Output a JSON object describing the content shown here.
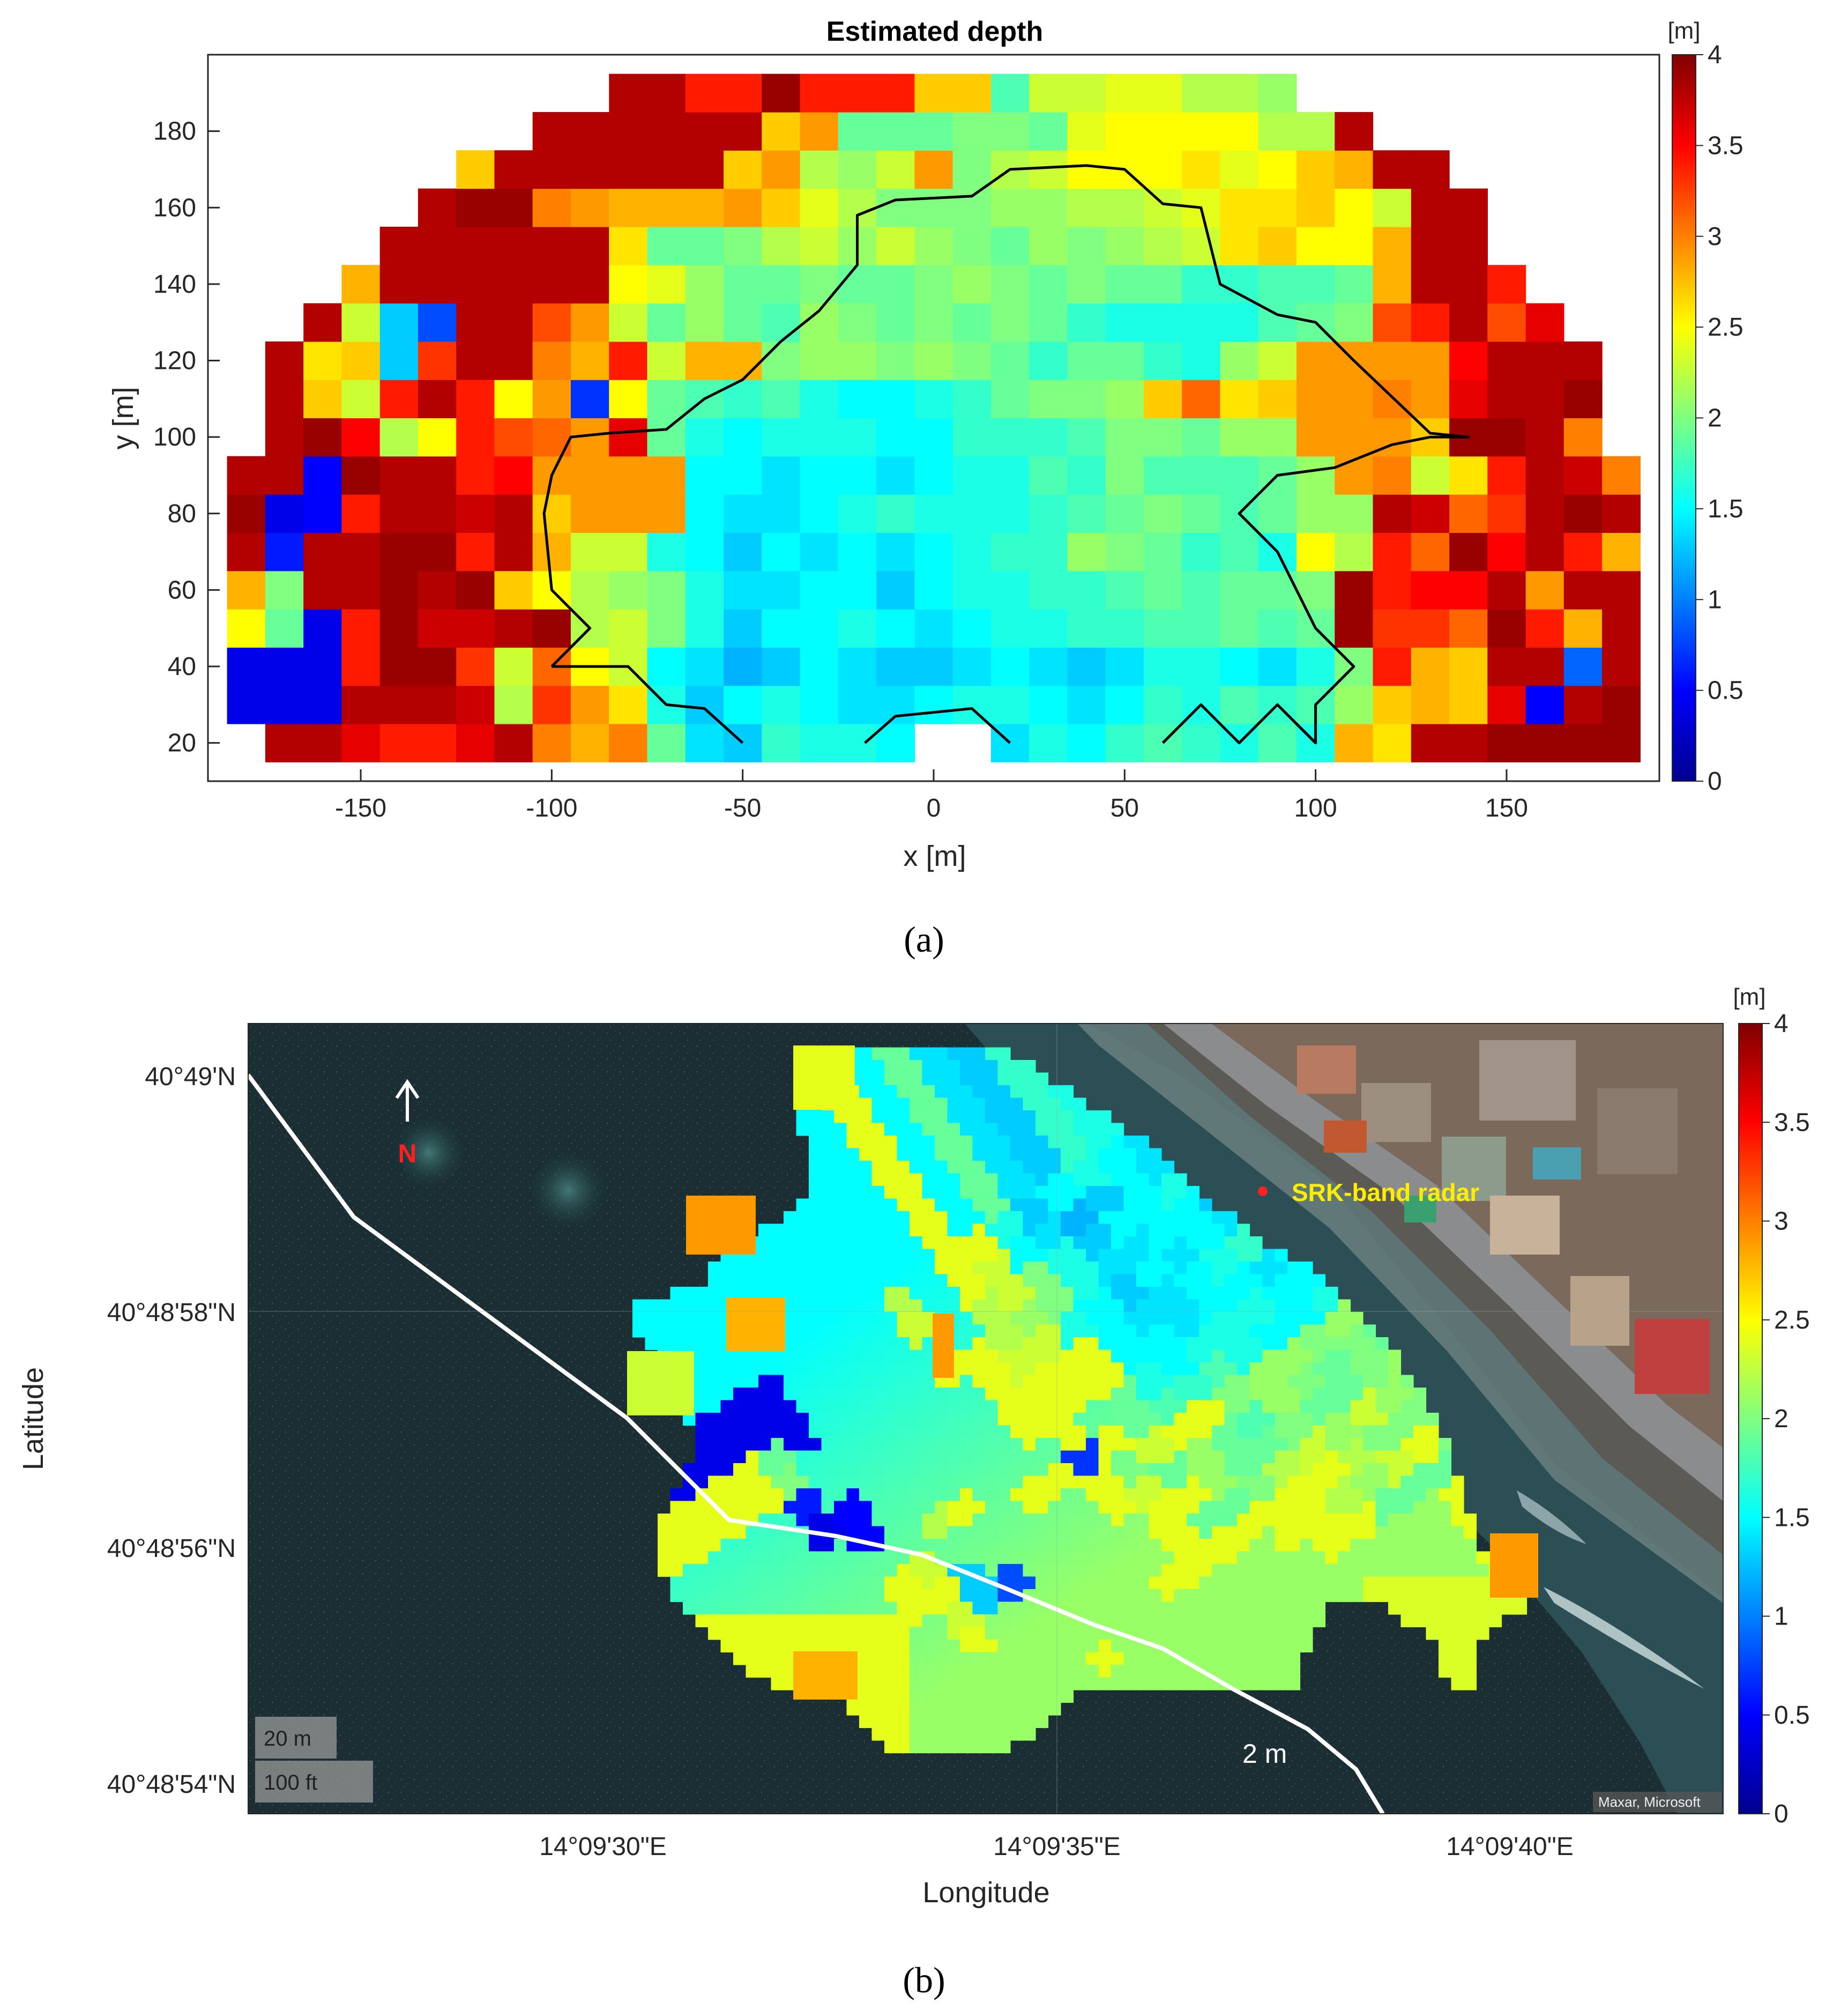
{
  "chart_data": [
    {
      "type": "heatmap",
      "title": "Estimated depth",
      "xlabel": "x [m]",
      "ylabel": "y [m]",
      "xlim": [
        -190,
        190
      ],
      "ylim": [
        10,
        200
      ],
      "xticks": [
        "-150",
        "-100",
        "-50",
        "0",
        "50",
        "100",
        "150"
      ],
      "xtick_values": [
        -150,
        -100,
        -50,
        0,
        50,
        100,
        150
      ],
      "yticks": [
        "20",
        "40",
        "60",
        "80",
        "100",
        "120",
        "140",
        "160",
        "180"
      ],
      "ytick_values": [
        20,
        40,
        60,
        80,
        100,
        120,
        140,
        160,
        180
      ],
      "colorbar": {
        "unit": "[m]",
        "min": 0,
        "max": 4,
        "ticks": [
          "0",
          "0.5",
          "1",
          "1.5",
          "2",
          "2.5",
          "3",
          "3.5",
          "4"
        ],
        "tick_values": [
          0,
          0.5,
          1,
          1.5,
          2,
          2.5,
          3,
          3.5,
          4
        ],
        "colormap": "jet"
      },
      "cell_size_m": 10,
      "x_centers": [
        -180,
        -170,
        -160,
        -150,
        -140,
        -130,
        -120,
        -110,
        -100,
        -90,
        -80,
        -70,
        -60,
        -50,
        -40,
        -30,
        -20,
        -10,
        0,
        10,
        20,
        30,
        40,
        50,
        60,
        70,
        80,
        90,
        100,
        110,
        120,
        130,
        140,
        150,
        160,
        170,
        180
      ],
      "y_centers": [
        20,
        30,
        40,
        50,
        60,
        70,
        80,
        90,
        100,
        110,
        120,
        130,
        140,
        150,
        160,
        170,
        180,
        190
      ],
      "depth_rows_from_bottom": [
        [
          -1,
          3.8,
          3.8,
          3.6,
          3.4,
          3.4,
          3.6,
          3.8,
          3.0,
          2.8,
          3.0,
          1.9,
          1.4,
          1.3,
          1.7,
          1.6,
          1.6,
          1.5,
          -1,
          -1,
          1.4,
          1.6,
          1.5,
          1.7,
          1.8,
          1.7,
          1.6,
          1.8,
          1.6,
          2.8,
          2.6,
          3.8,
          3.8,
          3.9,
          3.9,
          3.9,
          3.9
        ],
        [
          0.4,
          0.4,
          0.4,
          3.8,
          3.8,
          3.8,
          3.7,
          2.2,
          3.3,
          2.9,
          2.6,
          1.6,
          1.3,
          1.5,
          1.6,
          1.5,
          1.4,
          1.4,
          1.5,
          1.6,
          1.6,
          1.5,
          1.4,
          1.5,
          1.7,
          1.6,
          1.8,
          1.7,
          1.8,
          2.1,
          2.7,
          2.8,
          2.7,
          3.6,
          0.5,
          3.8,
          3.9
        ],
        [
          0.4,
          0.4,
          0.4,
          3.4,
          3.9,
          3.9,
          3.3,
          2.3,
          3.1,
          2.5,
          2.3,
          1.5,
          1.4,
          1.2,
          1.3,
          1.5,
          1.4,
          1.3,
          1.3,
          1.4,
          1.5,
          1.4,
          1.3,
          1.4,
          1.6,
          1.6,
          1.5,
          1.4,
          1.6,
          2.0,
          3.4,
          2.8,
          2.7,
          3.8,
          3.8,
          0.9,
          3.8
        ],
        [
          2.5,
          1.9,
          0.4,
          3.4,
          3.9,
          3.7,
          3.7,
          3.8,
          3.9,
          2.2,
          2.3,
          2.0,
          1.6,
          1.3,
          1.5,
          1.5,
          1.6,
          1.5,
          1.4,
          1.5,
          1.6,
          1.6,
          1.7,
          1.7,
          1.8,
          1.8,
          1.9,
          1.8,
          1.9,
          3.9,
          3.3,
          3.3,
          3.1,
          3.9,
          3.4,
          2.8,
          3.8
        ],
        [
          2.8,
          2.0,
          3.8,
          3.8,
          3.9,
          3.8,
          3.9,
          2.7,
          2.5,
          2.2,
          2.1,
          2.0,
          1.6,
          1.4,
          1.4,
          1.5,
          1.5,
          1.3,
          1.5,
          1.6,
          1.6,
          1.7,
          1.7,
          1.8,
          1.9,
          1.8,
          1.9,
          1.9,
          2.0,
          3.9,
          3.4,
          3.5,
          3.5,
          3.8,
          2.9,
          3.8,
          3.8
        ],
        [
          3.8,
          0.6,
          3.8,
          3.8,
          3.9,
          3.9,
          3.4,
          3.8,
          2.8,
          2.3,
          2.3,
          1.6,
          1.5,
          1.3,
          1.5,
          1.4,
          1.5,
          1.4,
          1.5,
          1.6,
          1.7,
          1.7,
          2.1,
          2.0,
          1.9,
          1.7,
          1.8,
          1.6,
          2.5,
          2.2,
          3.4,
          3.1,
          3.9,
          3.5,
          3.8,
          3.4,
          2.8
        ],
        [
          3.9,
          0.4,
          0.5,
          3.4,
          3.8,
          3.8,
          3.7,
          3.8,
          2.7,
          2.9,
          2.9,
          2.9,
          1.5,
          1.4,
          1.4,
          1.5,
          1.6,
          1.7,
          1.6,
          1.6,
          1.6,
          1.7,
          1.8,
          1.9,
          2.0,
          1.9,
          1.8,
          1.9,
          2.1,
          2.1,
          3.8,
          3.7,
          3.1,
          3.3,
          3.8,
          3.9,
          3.8
        ],
        [
          3.8,
          3.8,
          0.5,
          3.9,
          3.8,
          3.8,
          3.4,
          3.5,
          2.9,
          2.9,
          2.9,
          2.9,
          1.5,
          1.5,
          1.4,
          1.5,
          1.5,
          1.4,
          1.5,
          1.6,
          1.6,
          1.8,
          1.7,
          2.0,
          1.8,
          1.8,
          1.8,
          1.9,
          2.1,
          2.9,
          3.0,
          2.3,
          2.6,
          3.4,
          3.8,
          3.7,
          3.0
        ],
        [
          -1,
          3.8,
          3.9,
          3.5,
          2.2,
          2.5,
          3.4,
          3.2,
          3.1,
          2.9,
          3.6,
          1.9,
          1.6,
          1.5,
          1.6,
          1.6,
          1.6,
          1.5,
          1.5,
          1.7,
          1.7,
          1.7,
          1.8,
          2.0,
          2.0,
          1.9,
          2.1,
          2.1,
          2.9,
          2.9,
          2.9,
          2.7,
          3.9,
          3.9,
          3.8,
          3.0,
          -1
        ],
        [
          -1,
          3.8,
          2.7,
          2.3,
          3.4,
          3.8,
          3.4,
          2.5,
          2.9,
          0.7,
          2.5,
          1.9,
          1.8,
          1.7,
          1.8,
          1.6,
          1.5,
          1.5,
          1.6,
          1.7,
          1.9,
          2.0,
          2.0,
          2.1,
          2.7,
          3.1,
          2.6,
          2.7,
          2.9,
          2.9,
          3.0,
          2.9,
          3.6,
          3.8,
          3.8,
          3.9,
          -1
        ],
        [
          -1,
          3.8,
          2.6,
          2.7,
          1.3,
          3.3,
          3.8,
          3.8,
          3.0,
          2.8,
          3.4,
          2.3,
          2.8,
          2.8,
          2.0,
          2.1,
          2.1,
          2.0,
          2.1,
          2.0,
          1.9,
          1.7,
          1.9,
          1.9,
          1.7,
          1.6,
          2.1,
          2.3,
          2.9,
          2.9,
          2.9,
          2.9,
          3.5,
          3.8,
          3.8,
          3.8,
          -1
        ],
        [
          -1,
          -1,
          3.8,
          2.3,
          1.3,
          0.8,
          3.8,
          3.8,
          3.2,
          2.9,
          2.3,
          1.9,
          2.1,
          1.9,
          1.8,
          2.1,
          2.0,
          1.9,
          2.0,
          1.9,
          2.0,
          1.9,
          1.7,
          1.6,
          1.6,
          1.6,
          1.6,
          1.8,
          1.9,
          2.0,
          3.2,
          3.4,
          3.8,
          3.2,
          3.6,
          -1,
          -1
        ],
        [
          -1,
          -1,
          -1,
          2.8,
          3.8,
          3.8,
          3.8,
          3.8,
          3.8,
          3.8,
          2.5,
          2.4,
          2.1,
          1.9,
          1.9,
          2.0,
          1.9,
          1.9,
          2.0,
          2.1,
          2.0,
          1.9,
          2.0,
          1.9,
          1.9,
          1.7,
          1.7,
          1.8,
          1.8,
          1.9,
          2.8,
          3.8,
          3.8,
          3.4,
          -1,
          -1,
          -1
        ],
        [
          -1,
          -1,
          -1,
          -1,
          3.8,
          3.8,
          3.8,
          3.8,
          3.8,
          3.8,
          2.6,
          1.9,
          1.9,
          2.0,
          2.2,
          2.3,
          2.1,
          2.3,
          2.1,
          2.0,
          1.9,
          2.1,
          2.0,
          2.1,
          2.2,
          2.3,
          2.6,
          2.7,
          2.5,
          2.5,
          2.8,
          3.8,
          3.8,
          -1,
          -1,
          -1,
          -1
        ],
        [
          -1,
          -1,
          -1,
          -1,
          -1,
          3.8,
          3.9,
          3.9,
          3.0,
          2.9,
          2.8,
          2.8,
          2.8,
          2.9,
          2.7,
          2.4,
          2.2,
          2.0,
          2.0,
          2.0,
          2.1,
          2.1,
          2.2,
          2.2,
          2.3,
          2.4,
          2.6,
          2.6,
          2.7,
          2.5,
          2.3,
          3.8,
          3.8,
          -1,
          -1,
          -1,
          -1
        ],
        [
          -1,
          -1,
          -1,
          -1,
          -1,
          -1,
          2.7,
          3.8,
          3.8,
          3.8,
          3.8,
          3.8,
          3.8,
          2.7,
          2.9,
          2.2,
          2.1,
          2.3,
          2.9,
          2.0,
          2.2,
          2.3,
          2.5,
          2.5,
          2.5,
          2.6,
          2.4,
          2.5,
          2.7,
          2.8,
          3.8,
          3.8,
          -1,
          -1,
          -1,
          -1,
          -1
        ],
        [
          -1,
          -1,
          -1,
          -1,
          -1,
          -1,
          -1,
          -1,
          3.8,
          3.8,
          3.8,
          3.8,
          3.8,
          3.8,
          2.7,
          2.9,
          1.9,
          1.9,
          1.9,
          2.0,
          2.0,
          1.9,
          2.4,
          2.5,
          2.5,
          2.5,
          2.5,
          2.2,
          2.2,
          3.8,
          -1,
          -1,
          -1,
          -1,
          -1,
          -1,
          -1
        ],
        [
          -1,
          -1,
          -1,
          -1,
          -1,
          -1,
          -1,
          -1,
          -1,
          -1,
          3.8,
          3.8,
          3.4,
          3.4,
          3.9,
          3.4,
          3.4,
          3.4,
          2.7,
          2.7,
          1.8,
          2.3,
          2.3,
          2.4,
          2.4,
          2.2,
          2.2,
          2.1,
          -1,
          -1,
          -1,
          -1,
          -1,
          -1,
          -1,
          -1,
          -1
        ]
      ],
      "contour_segments": [
        [
          [
            -100,
            40
          ],
          [
            -90,
            50
          ],
          [
            -100,
            60
          ],
          [
            -102,
            80
          ],
          [
            -100,
            90
          ],
          [
            -95,
            100
          ],
          [
            -85,
            101
          ],
          [
            -70,
            102
          ],
          [
            -60,
            110
          ],
          [
            -50,
            115
          ],
          [
            -40,
            125
          ],
          [
            -30,
            133
          ],
          [
            -20,
            145
          ],
          [
            -20,
            158
          ],
          [
            -10,
            162
          ],
          [
            10,
            163
          ],
          [
            20,
            170
          ],
          [
            40,
            171
          ],
          [
            50,
            170
          ],
          [
            60,
            161
          ],
          [
            70,
            160
          ],
          [
            75,
            140
          ],
          [
            90,
            132
          ],
          [
            100,
            130
          ],
          [
            110,
            120
          ],
          [
            130,
            101
          ],
          [
            140,
            100
          ],
          [
            130,
            100
          ],
          [
            120,
            98
          ],
          [
            105,
            92
          ],
          [
            90,
            90
          ],
          [
            85,
            85
          ],
          [
            80,
            80
          ],
          [
            90,
            70
          ],
          [
            95,
            60
          ],
          [
            100,
            50
          ],
          [
            110,
            40
          ],
          [
            100,
            30
          ],
          [
            100,
            20
          ],
          [
            95,
            25
          ]
        ],
        [
          [
            -100,
            40
          ],
          [
            -80,
            40
          ],
          [
            -70,
            30
          ],
          [
            -60,
            29
          ],
          [
            -50,
            20
          ]
        ],
        [
          [
            -18,
            20
          ],
          [
            -10,
            27
          ],
          [
            10,
            29
          ],
          [
            20,
            20
          ]
        ],
        [
          [
            60,
            20
          ],
          [
            70,
            30
          ],
          [
            80,
            20
          ],
          [
            90,
            30
          ],
          [
            100,
            20
          ]
        ]
      ]
    },
    {
      "type": "heatmap",
      "subtype": "map-overlay",
      "xlabel": "Longitude",
      "ylabel": "Latitude",
      "xticks": [
        "14°09'30\"E",
        "14°09'35\"E",
        "14°09'40\"E"
      ],
      "yticks": [
        "40°49'N",
        "40°48'58\"N",
        "40°48'56\"N",
        "40°48'54\"N"
      ],
      "colorbar": {
        "unit": "[m]",
        "min": 0,
        "max": 4,
        "ticks": [
          "0",
          "0.5",
          "1",
          "1.5",
          "2",
          "2.5",
          "3",
          "3.5",
          "4"
        ],
        "tick_values": [
          0,
          0.5,
          1,
          1.5,
          2,
          2.5,
          3,
          3.5,
          4
        ],
        "colormap": "jet"
      },
      "annotations": {
        "north": "N",
        "radar": "SRK-band radar",
        "contour_label": "2 m",
        "scale_metric": "20 m",
        "scale_imperial": "100 ft",
        "attribution": "Maxar, Microsoft"
      },
      "colors": {
        "contour": "#ffffff",
        "radar_marker": "#ff2020",
        "radar_label": "#ffee00",
        "north_label": "#ff2020"
      }
    }
  ],
  "panel_labels": {
    "a": "(a)",
    "b": "(b)"
  },
  "colors": {
    "axis": "#262626",
    "contour_a": "#000000"
  }
}
